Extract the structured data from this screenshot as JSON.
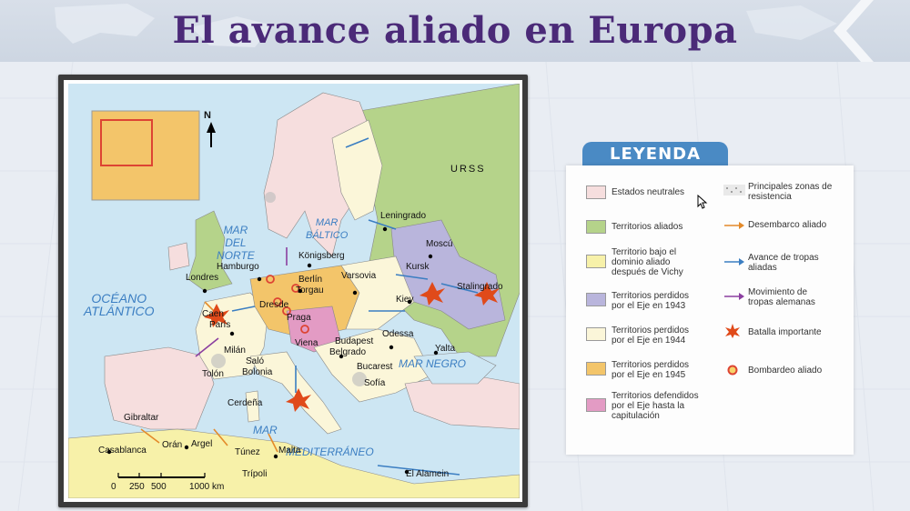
{
  "title": "El avance aliado en Europa",
  "legend": {
    "header": "LEYENDA",
    "items": [
      {
        "label": "Estados neutrales",
        "color": "#f6dede"
      },
      {
        "label": "Territorios aliados",
        "color": "#b5d38a"
      },
      {
        "label": "Territorio bajo el dominio aliado después de Vichy",
        "color": "#f7f1a9"
      },
      {
        "label": "Territorios perdidos por el Eje en 1943",
        "color": "#b9b5dc"
      },
      {
        "label": "Territorios perdidos por el Eje en 1944",
        "color": "#fbf6d9"
      },
      {
        "label": "Territorios perdidos por el Eje en 1945",
        "color": "#f3c56a"
      },
      {
        "label": "Territorios defendidos por el Eje hasta la capitulación",
        "color": "#e39bc4"
      }
    ],
    "symbols": [
      {
        "label": "Principales zonas de resistencia",
        "icon": "dotted-area-icon"
      },
      {
        "label": "Desembarco aliado",
        "icon": "orange-arrow-icon"
      },
      {
        "label": "Avance de tropas aliadas",
        "icon": "blue-arrow-icon"
      },
      {
        "label": "Movimiento de tropas alemanas",
        "icon": "purple-arrow-icon"
      },
      {
        "label": "Batalla importante",
        "icon": "explosion-icon"
      },
      {
        "label": "Bombardeo aliado",
        "icon": "bomb-ring-icon"
      }
    ]
  },
  "map": {
    "north": "N",
    "seas": {
      "atlantic": "OCÉANO\nATLÁNTICO",
      "north_sea": "MAR\nDEL\nNORTE",
      "baltic": "MAR\nBÁLTICO",
      "black_sea": "MAR NEGRO",
      "mediterranean_1": "MAR",
      "mediterranean_2": "MEDITERRÁNEO"
    },
    "urss": "URSS",
    "scale": {
      "ticks": [
        "0",
        "250",
        "500",
        "1000 km"
      ]
    },
    "cities": {
      "leningrado": "Leningrado",
      "moscu": "Moscú",
      "konigsberg": "Königsberg",
      "londres": "Londres",
      "hamburgo": "Hamburgo",
      "berlin": "Berlín",
      "varsovia": "Varsovia",
      "torgau": "Torgau",
      "kursk": "Kursk",
      "stalingrado": "Stalingrado",
      "kiev": "Kiev",
      "caen": "Caen",
      "paris": "París",
      "dresde": "Dresde",
      "praga": "Praga",
      "odessa": "Odessa",
      "yalta": "Yalta",
      "viena": "Viena",
      "budapest": "Budapest",
      "belgrado": "Belgrado",
      "milan": "Milán",
      "salo": "Saló",
      "bolonia": "Bolonia",
      "bucarest": "Bucarest",
      "tolon": "Tolón",
      "sofia": "Sofía",
      "cerdena": "Cerdeña",
      "gibraltar": "Gibraltar",
      "casablanca": "Casablanca",
      "oran": "Orán",
      "argel": "Argel",
      "tunez": "Túnez",
      "malta": "Malta",
      "tripoli": "Trípoli",
      "el_alamein": "El Alamein"
    }
  }
}
